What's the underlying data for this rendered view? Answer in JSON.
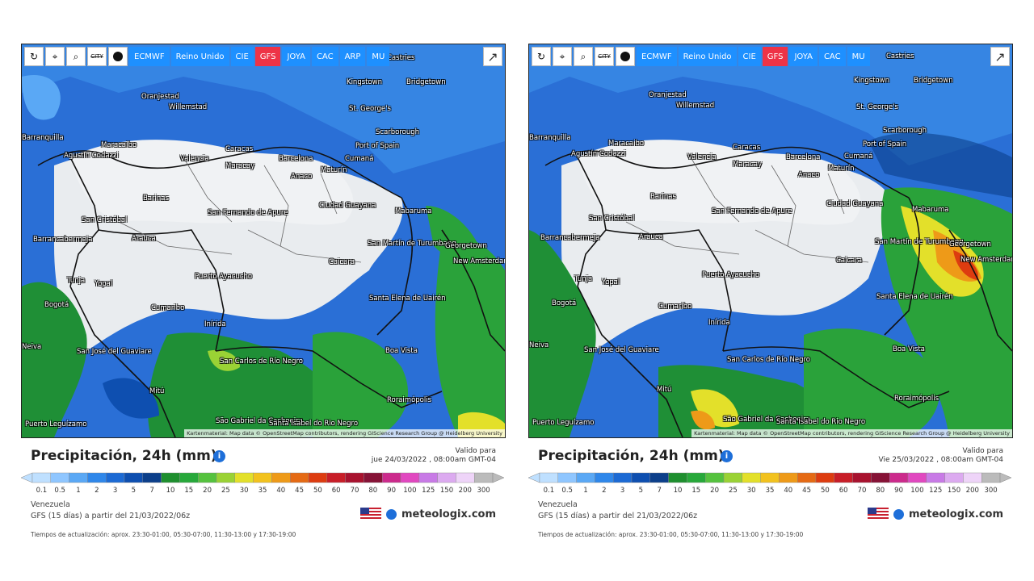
{
  "toolbar": {
    "icons": [
      "refresh-icon",
      "location-pin-icon",
      "zoom-icon",
      "city-toggle-icon",
      "dot-icon"
    ],
    "city_label": "CITY",
    "models_left": [
      "ECMWF",
      "Reino Unido",
      "CIE",
      "GFS",
      "JOYA",
      "CAC",
      "ARP",
      "MU"
    ],
    "models_right": [
      "ECMWF",
      "Reino Unido",
      "CIE",
      "GFS",
      "JOYA",
      "CAC",
      "MU"
    ],
    "active_model": "GFS"
  },
  "map": {
    "attribution": "Kartenmaterial: Map data © OpenStreetMap contributors, rendering GIScience Research Group @ Heidelberg University",
    "cities": [
      "Castries",
      "Kingstown",
      "Bridgetown",
      "Oranjestad",
      "Willemstad",
      "St. George's",
      "Scarborough",
      "Port of Spain",
      "Barranquilla",
      "Maracaibo",
      "Caracas",
      "Valencia",
      "Maracay",
      "Barcelona",
      "Cumaná",
      "Maturín",
      "Anaco",
      "Agustín Codazzi",
      "Cúcuta",
      "Barinas",
      "San Cristóbal",
      "San Fernando de Apure",
      "Ciudad Guayana",
      "Mabaruma",
      "Barrancabermeja",
      "Arauca",
      "San Martín de Turumbang",
      "Georgetown",
      "New Amsterdam",
      "Caicara",
      "Tunja",
      "Yopal",
      "Puerto Ayacucho",
      "Bogotá",
      "Santa Elena de Uairén",
      "Cumaribo",
      "Inírida",
      "Boa Vista",
      "San José del Guaviare",
      "San Carlos de Río Negro",
      "Mitú",
      "Roraimópolis",
      "São Gabriel da Cachoeira",
      "Santa Isabel do Rio Negro",
      "Puerto Leguízamo",
      "Neiva",
      "Ibagué",
      "Mede...",
      "Florencia"
    ]
  },
  "panels": [
    {
      "title": "Precipitación, 24h (mm)",
      "valid_label": "Valido para",
      "valid_date": "jue 24/03/2022 , 08:00am GMT-04",
      "region": "Venezuela",
      "run_info": "GFS (15 días) a partir del 21/03/2022/06z",
      "brand": "meteologix.com",
      "update_times": "Tiempos de actualización: aprox. 23:30-01:00, 05:30-07:00, 11:30-13:00 y 17:30-19:00"
    },
    {
      "title": "Precipitación, 24h (mm)",
      "valid_label": "Valido para",
      "valid_date": "Vie 25/03/2022 , 08:00am GMT-04",
      "region": "Venezuela",
      "run_info": "GFS (15 días) a partir del 21/03/2022/06z",
      "brand": "meteologix.com",
      "update_times": "Tiempos de actualización: aprox. 23:30-01:00, 05:30-07:00, 11:30-13:00 y 17:30-19:00"
    }
  ],
  "scale": {
    "labels": [
      "0.1",
      "0.5",
      "1",
      "2",
      "3",
      "5",
      "7",
      "10",
      "15",
      "20",
      "25",
      "30",
      "35",
      "40",
      "45",
      "50",
      "60",
      "70",
      "80",
      "90",
      "100",
      "125",
      "150",
      "200",
      "300"
    ],
    "colors": [
      "#bfe0ff",
      "#8fc6ff",
      "#5aa8f5",
      "#2f87ea",
      "#1c6ad4",
      "#0e4fb0",
      "#0c3f8a",
      "#1e8f2e",
      "#27a83a",
      "#55c23e",
      "#9ad235",
      "#e3e02a",
      "#f2c21e",
      "#ee9a18",
      "#e56a14",
      "#dd3c10",
      "#c81e28",
      "#a8122e",
      "#861236",
      "#cc2a8c",
      "#e148c0",
      "#c87ae6",
      "#dcaaf0",
      "#eed4f8",
      "#bbbbbb"
    ]
  }
}
